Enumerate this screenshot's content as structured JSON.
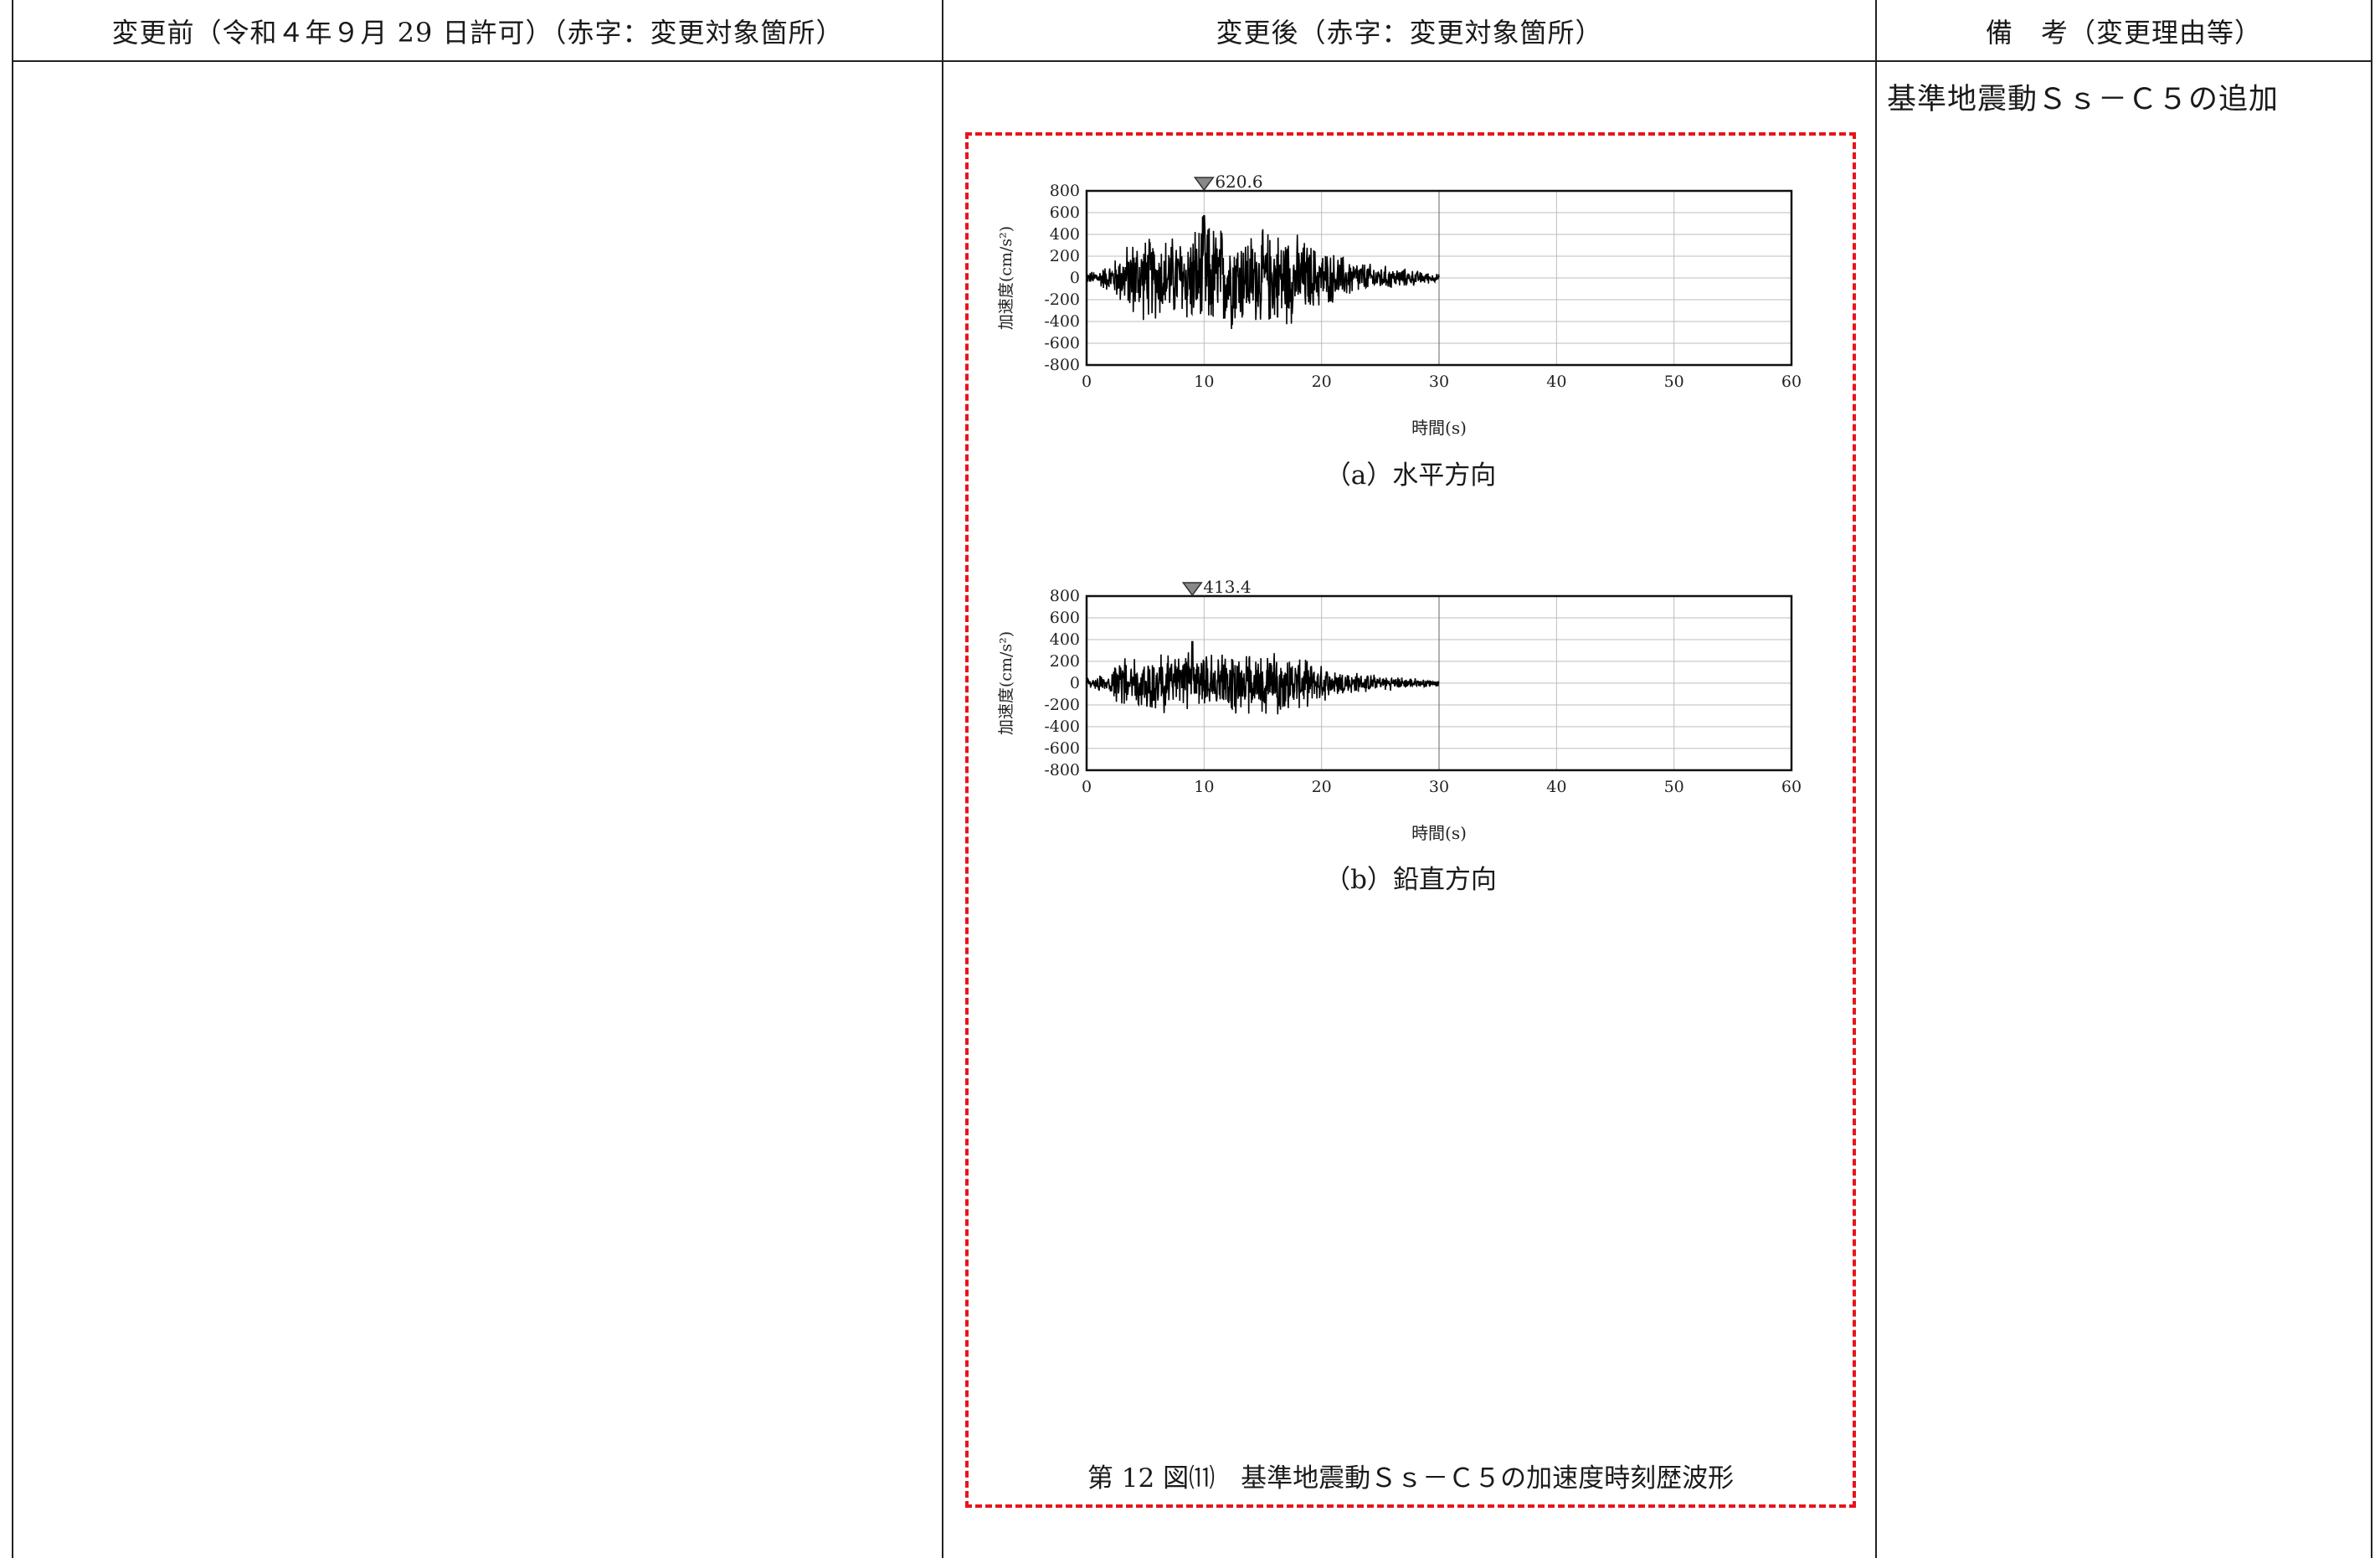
{
  "table": {
    "headers": {
      "before": "変更前（令和４年９月 29 日許可）（赤字：変更対象箇所）",
      "after": "変更後（赤字：変更対象箇所）",
      "remarks": "備　考（変更理由等）"
    },
    "remark_text": "基準地震動Ｓｓ－Ｃ５の追加"
  },
  "figure": {
    "caption": "第 12 図⑾　基準地震動Ｓｓ－Ｃ５の加速度時刻歴波形",
    "border_color": "#e8141b"
  },
  "charts": {
    "horizontal": {
      "subcaption": "（a）水平方向",
      "peak_label": "620.6"
    },
    "vertical": {
      "subcaption": "（b）鉛直方向",
      "peak_label": "413.4"
    }
  },
  "chart_data": [
    {
      "type": "line",
      "subtitle": "（a）水平方向",
      "xlabel": "時間(s)",
      "ylabel": "加速度(cm/s²)",
      "xlim": [
        0,
        60
      ],
      "ylim": [
        -800,
        800
      ],
      "x_ticks": [
        "0",
        "10",
        "20",
        "30",
        "40",
        "50",
        "60"
      ],
      "y_ticks": [
        "800",
        "600",
        "400",
        "200",
        "0",
        "-200",
        "-400",
        "-600",
        "-800"
      ],
      "peak": {
        "time": 10,
        "value": 620.6,
        "label": "620.6"
      },
      "duration": 30,
      "envelope": [
        {
          "t": 0,
          "a": 50
        },
        {
          "t": 2,
          "a": 150
        },
        {
          "t": 4,
          "a": 420
        },
        {
          "t": 8,
          "a": 450
        },
        {
          "t": 10,
          "a": 600
        },
        {
          "t": 14,
          "a": 480
        },
        {
          "t": 17,
          "a": 500
        },
        {
          "t": 20,
          "a": 300
        },
        {
          "t": 24,
          "a": 150
        },
        {
          "t": 28,
          "a": 80
        },
        {
          "t": 30,
          "a": 40
        }
      ],
      "grid": true
    },
    {
      "type": "line",
      "subtitle": "（b）鉛直方向",
      "xlabel": "時間(s)",
      "ylabel": "加速度(cm/s²)",
      "xlim": [
        0,
        60
      ],
      "ylim": [
        -800,
        800
      ],
      "x_ticks": [
        "0",
        "10",
        "20",
        "30",
        "40",
        "50",
        "60"
      ],
      "y_ticks": [
        "800",
        "600",
        "400",
        "200",
        "0",
        "-200",
        "-400",
        "-600",
        "-800"
      ],
      "peak": {
        "time": 9,
        "value": 413.4,
        "label": "413.4"
      },
      "duration": 30,
      "envelope": [
        {
          "t": 0,
          "a": 40
        },
        {
          "t": 2,
          "a": 120
        },
        {
          "t": 3,
          "a": 250
        },
        {
          "t": 9,
          "a": 330
        },
        {
          "t": 13,
          "a": 280
        },
        {
          "t": 17,
          "a": 300
        },
        {
          "t": 20,
          "a": 180
        },
        {
          "t": 24,
          "a": 90
        },
        {
          "t": 28,
          "a": 50
        },
        {
          "t": 30,
          "a": 30
        }
      ],
      "grid": true
    }
  ]
}
